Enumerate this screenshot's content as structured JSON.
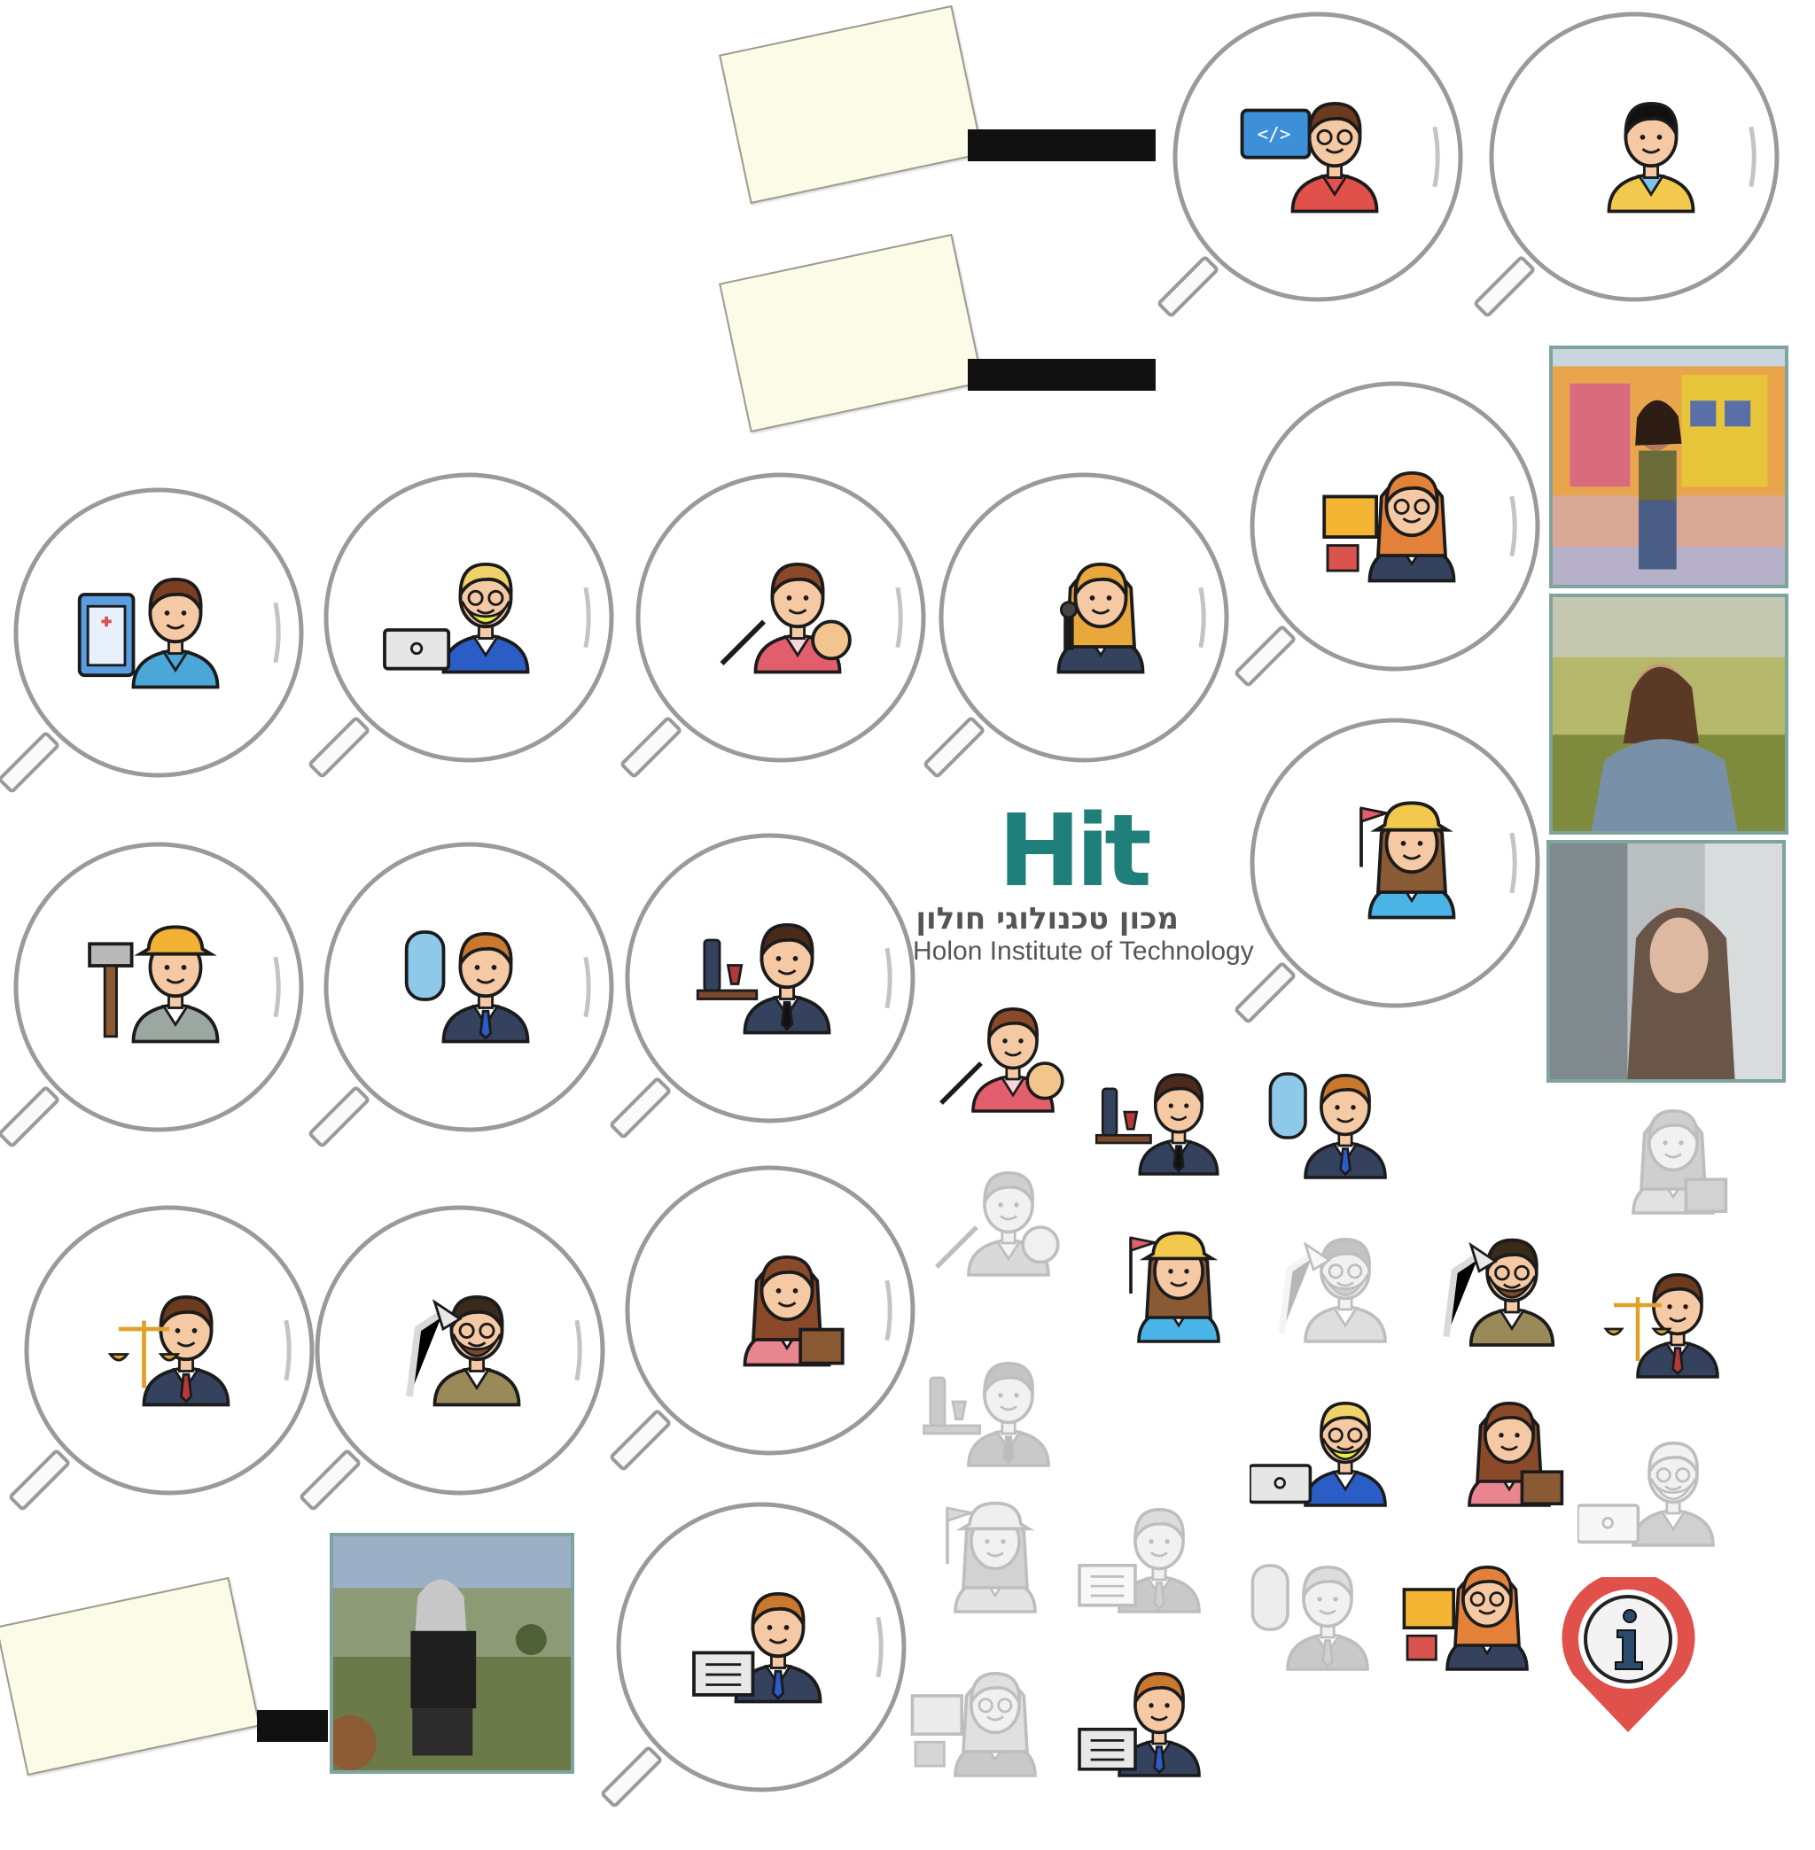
{
  "logo": {
    "mark": "Hit",
    "hebrew_name": "מכון טכנולוגי חולון",
    "english_name": "Holon Institute of Technology"
  },
  "colors": {
    "brand_teal": "#1f7f7b",
    "note_paper": "#fbfbe8",
    "photo_frame": "#7fa39e",
    "info_pin_red": "#e0514b"
  },
  "magnifiers": [
    {
      "figure": "programmer-icon"
    },
    {
      "figure": "young-man-icon"
    },
    {
      "figure": "secretary-icon"
    },
    {
      "figure": "nurse-icon"
    },
    {
      "figure": "bearded-freelancer-icon"
    },
    {
      "figure": "makeup-artist-icon"
    },
    {
      "figure": "singer-icon"
    },
    {
      "figure": "tour-guide-icon"
    },
    {
      "figure": "construction-worker-icon"
    },
    {
      "figure": "flight-attendant-icon"
    },
    {
      "figure": "waiter-icon"
    },
    {
      "figure": "lawyer-icon"
    },
    {
      "figure": "architect-icon"
    },
    {
      "figure": "teacher-icon"
    },
    {
      "figure": "event-planner-icon"
    }
  ],
  "info_pin": {
    "icon": "info-icon"
  }
}
